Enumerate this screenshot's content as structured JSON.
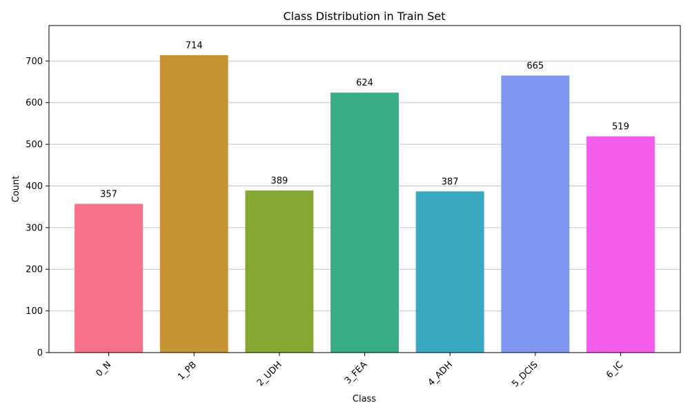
{
  "chart_data": {
    "type": "bar",
    "title": "Class Distribution in Train Set",
    "xlabel": "Class",
    "ylabel": "Count",
    "categories": [
      "0_N",
      "1_PB",
      "2_UDH",
      "3_FEA",
      "4_ADH",
      "5_DCIS",
      "6_IC"
    ],
    "values": [
      357,
      714,
      389,
      624,
      387,
      665,
      519
    ],
    "colors": [
      "#f77189",
      "#c69432",
      "#84a833",
      "#36ad86",
      "#38a9c0",
      "#8097f2",
      "#f45deb"
    ],
    "ylim": [
      0,
      785
    ],
    "yticks": [
      0,
      100,
      200,
      300,
      400,
      500,
      600,
      700
    ],
    "grid": "y",
    "data_labels": true,
    "legend": "none"
  }
}
